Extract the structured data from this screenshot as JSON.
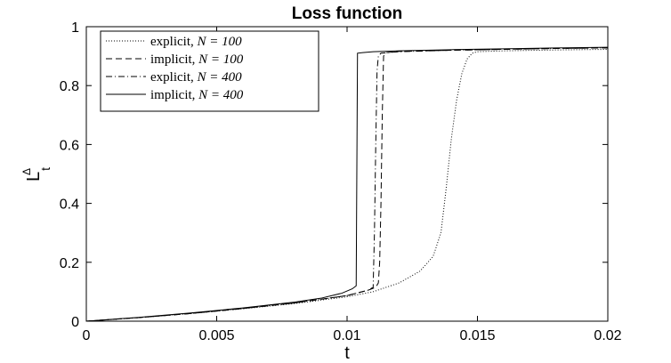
{
  "chart_data": {
    "type": "line",
    "title": "Loss function",
    "xlabel": "t",
    "ylabel": "L",
    "ylabel_sub": "t",
    "ylabel_sup": "Δ",
    "xlim": [
      0,
      0.02
    ],
    "ylim": [
      0,
      1
    ],
    "xticks": [
      0,
      0.005,
      0.01,
      0.015,
      0.02
    ],
    "xtick_labels": [
      "0",
      "0.005",
      "0.01",
      "0.015",
      "0.02"
    ],
    "yticks": [
      0,
      0.2,
      0.4,
      0.6,
      0.8,
      1
    ],
    "ytick_labels": [
      "0",
      "0.2",
      "0.4",
      "0.6",
      "0.8",
      "1"
    ],
    "grid": false,
    "legend_position": "top-left",
    "series": [
      {
        "name": "explicit, N = 100",
        "name_text": "explicit, ",
        "name_math": "N = 100",
        "style": "dotted",
        "x": [
          0,
          0.002,
          0.004,
          0.006,
          0.008,
          0.01,
          0.011,
          0.012,
          0.0128,
          0.0133,
          0.0136,
          0.0138,
          0.014,
          0.0142,
          0.0144,
          0.0146,
          0.0148,
          0.015,
          0.016,
          0.018,
          0.02
        ],
        "y": [
          0,
          0.012,
          0.026,
          0.042,
          0.06,
          0.083,
          0.1,
          0.13,
          0.17,
          0.22,
          0.3,
          0.45,
          0.62,
          0.75,
          0.84,
          0.89,
          0.91,
          0.915,
          0.918,
          0.921,
          0.923
        ]
      },
      {
        "name": "implicit, N = 100",
        "name_text": "implicit, ",
        "name_math": "N = 100",
        "style": "dashed",
        "x": [
          0,
          0.002,
          0.004,
          0.006,
          0.008,
          0.01,
          0.0108,
          0.0111,
          0.0112,
          0.01125,
          0.0113,
          0.01135,
          0.0114,
          0.0115,
          0.012,
          0.014,
          0.016,
          0.018,
          0.02
        ],
        "y": [
          0,
          0.012,
          0.026,
          0.043,
          0.062,
          0.087,
          0.105,
          0.115,
          0.13,
          0.2,
          0.4,
          0.7,
          0.9,
          0.912,
          0.916,
          0.92,
          0.923,
          0.926,
          0.928
        ]
      },
      {
        "name": "explicit, N = 400",
        "name_text": "explicit, ",
        "name_math": "N = 400",
        "style": "dashdot",
        "x": [
          0,
          0.002,
          0.004,
          0.006,
          0.008,
          0.01,
          0.0108,
          0.011,
          0.01105,
          0.0111,
          0.01115,
          0.0112,
          0.0113,
          0.012,
          0.014,
          0.016,
          0.018,
          0.02
        ],
        "y": [
          0,
          0.012,
          0.026,
          0.043,
          0.062,
          0.087,
          0.105,
          0.115,
          0.3,
          0.6,
          0.85,
          0.9,
          0.91,
          0.915,
          0.92,
          0.923,
          0.926,
          0.928
        ]
      },
      {
        "name": "implicit, N = 400",
        "name_text": "implicit, ",
        "name_math": "N = 400",
        "style": "solid",
        "x": [
          0,
          0.002,
          0.004,
          0.006,
          0.008,
          0.009,
          0.0098,
          0.0102,
          0.01035,
          0.0104,
          0.0106,
          0.011,
          0.012,
          0.014,
          0.016,
          0.018,
          0.02
        ],
        "y": [
          0,
          0.013,
          0.028,
          0.045,
          0.065,
          0.078,
          0.095,
          0.11,
          0.12,
          0.91,
          0.912,
          0.915,
          0.918,
          0.922,
          0.925,
          0.928,
          0.93
        ]
      }
    ]
  }
}
